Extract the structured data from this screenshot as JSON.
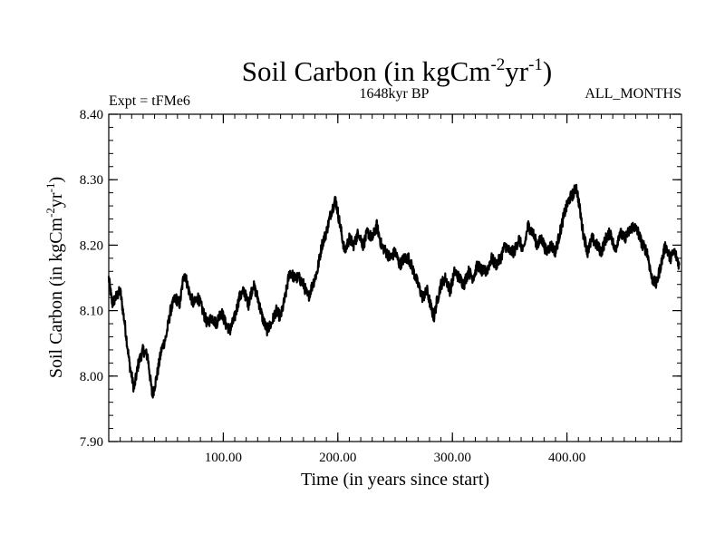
{
  "chart_data": {
    "type": "line",
    "title": "Soil Carbon (in kgCm",
    "title_sup1": "-2",
    "title_mid": "yr",
    "title_sup2": "-1",
    "title_end": ")",
    "subtitle_left": "Expt = tFMe6",
    "subtitle_center": "1648kyr BP",
    "subtitle_right": "ALL_MONTHS",
    "xlabel": "Time (in years since start)",
    "ylabel": "Soil Carbon (in kgCm",
    "ylabel_sup1": "-2",
    "ylabel_mid": "yr",
    "ylabel_sup2": "-1",
    "ylabel_end": ")",
    "xlim": [
      0,
      500
    ],
    "ylim": [
      7.9,
      8.4
    ],
    "xticks": [
      100,
      200,
      300,
      400
    ],
    "xtick_labels": [
      "100.00",
      "200.00",
      "300.00",
      "400.00"
    ],
    "yticks": [
      7.9,
      8.0,
      8.1,
      8.2,
      8.3,
      8.4
    ],
    "ytick_labels": [
      "7.90",
      "8.00",
      "8.10",
      "8.20",
      "8.30",
      "8.40"
    ],
    "grid": false,
    "line_color": "#000000",
    "series": [
      {
        "name": "Soil Carbon",
        "x": [
          0,
          3,
          6,
          10,
          14,
          18,
          22,
          26,
          30,
          34,
          38,
          42,
          46,
          50,
          54,
          58,
          62,
          66,
          70,
          74,
          78,
          82,
          86,
          90,
          94,
          98,
          102,
          106,
          110,
          114,
          118,
          122,
          126,
          130,
          134,
          138,
          142,
          146,
          150,
          154,
          158,
          162,
          166,
          170,
          174,
          178,
          182,
          186,
          190,
          194,
          198,
          200,
          202,
          206,
          210,
          214,
          218,
          222,
          226,
          230,
          234,
          238,
          242,
          246,
          250,
          254,
          258,
          262,
          266,
          270,
          274,
          278,
          282,
          284,
          286,
          290,
          294,
          298,
          302,
          306,
          310,
          314,
          318,
          322,
          326,
          330,
          334,
          338,
          342,
          346,
          350,
          354,
          358,
          362,
          366,
          370,
          374,
          378,
          382,
          386,
          390,
          394,
          398,
          402,
          406,
          408,
          410,
          414,
          418,
          422,
          426,
          430,
          434,
          438,
          442,
          446,
          450,
          454,
          458,
          462,
          466,
          470,
          474,
          478,
          482,
          486,
          490,
          494,
          498
        ],
        "values": [
          8.15,
          8.11,
          8.12,
          8.13,
          8.08,
          8.02,
          7.98,
          8.02,
          8.04,
          8.03,
          7.97,
          8.0,
          8.04,
          8.06,
          8.1,
          8.12,
          8.11,
          8.16,
          8.13,
          8.11,
          8.12,
          8.1,
          8.08,
          8.09,
          8.08,
          8.1,
          8.08,
          8.07,
          8.09,
          8.12,
          8.13,
          8.11,
          8.14,
          8.12,
          8.09,
          8.07,
          8.08,
          8.1,
          8.09,
          8.12,
          8.16,
          8.15,
          8.15,
          8.14,
          8.12,
          8.14,
          8.16,
          8.2,
          8.22,
          8.25,
          8.27,
          8.25,
          8.23,
          8.19,
          8.21,
          8.2,
          8.22,
          8.2,
          8.22,
          8.21,
          8.23,
          8.2,
          8.19,
          8.18,
          8.19,
          8.17,
          8.18,
          8.18,
          8.16,
          8.14,
          8.12,
          8.13,
          8.1,
          8.09,
          8.11,
          8.14,
          8.15,
          8.13,
          8.16,
          8.15,
          8.14,
          8.16,
          8.15,
          8.17,
          8.16,
          8.16,
          8.18,
          8.17,
          8.18,
          8.2,
          8.19,
          8.19,
          8.21,
          8.19,
          8.23,
          8.22,
          8.2,
          8.21,
          8.19,
          8.2,
          8.19,
          8.22,
          8.25,
          8.27,
          8.28,
          8.29,
          8.27,
          8.22,
          8.19,
          8.21,
          8.2,
          8.19,
          8.21,
          8.22,
          8.19,
          8.22,
          8.21,
          8.22,
          8.23,
          8.22,
          8.2,
          8.19,
          8.15,
          8.14,
          8.17,
          8.2,
          8.18,
          8.19,
          8.17
        ]
      }
    ]
  }
}
